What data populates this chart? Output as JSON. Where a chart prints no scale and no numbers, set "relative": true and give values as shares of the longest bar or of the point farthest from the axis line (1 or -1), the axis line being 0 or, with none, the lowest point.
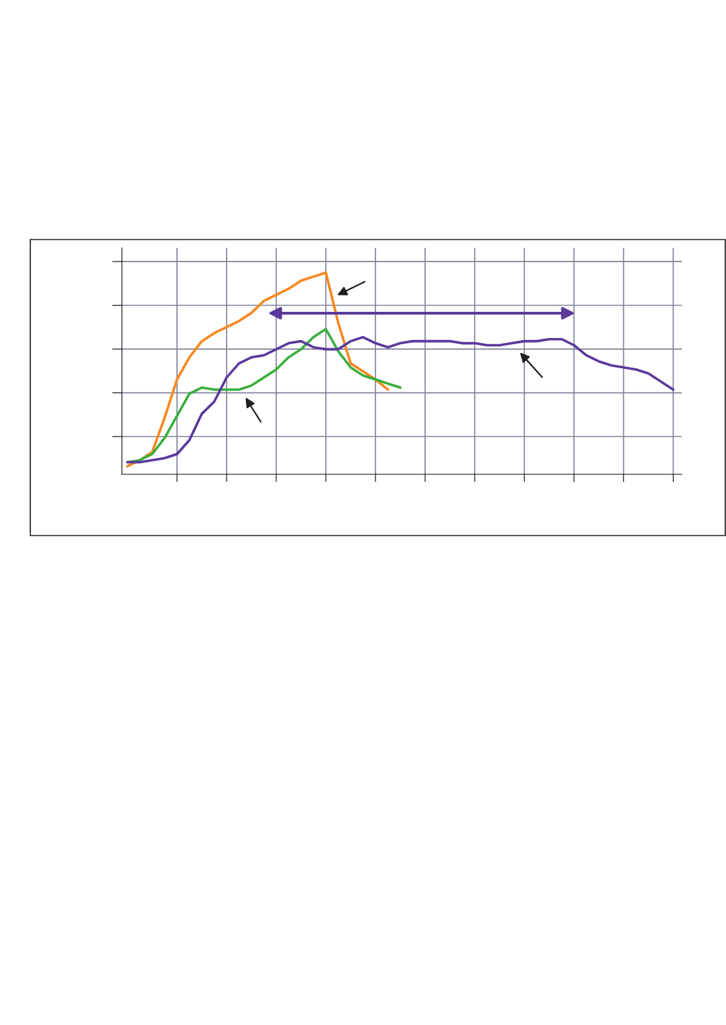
{
  "chart_data": {
    "type": "line",
    "relative": true,
    "grid": true,
    "tick_labels": false,
    "marker": "none",
    "line_style": "solid",
    "categories": [
      null,
      null,
      null,
      null,
      null,
      null,
      null,
      null,
      null,
      null,
      null,
      null,
      null,
      null,
      null,
      null,
      null,
      null,
      null,
      null,
      null,
      null,
      null,
      null,
      null,
      null,
      null,
      null,
      null,
      null,
      null,
      null,
      null,
      null,
      null,
      null,
      null,
      null,
      null,
      null,
      null,
      null,
      null,
      null,
      null
    ],
    "series": [
      {
        "color": "#f7871f",
        "values": [
          0.04,
          0.07,
          0.11,
          0.28,
          0.47,
          0.58,
          0.66,
          0.7,
          0.73,
          0.76,
          0.8,
          0.86,
          0.89,
          0.92,
          0.96,
          0.98,
          1.0,
          0.75,
          0.55,
          0.51,
          0.47,
          0.42,
          null,
          null,
          null,
          null,
          null,
          null,
          null,
          null,
          null,
          null,
          null,
          null,
          null,
          null,
          null,
          null,
          null,
          null,
          null,
          null,
          null,
          null,
          null
        ]
      },
      {
        "color": "#3aae3e",
        "values": [
          0.06,
          0.07,
          0.1,
          0.18,
          0.29,
          0.4,
          0.43,
          0.42,
          0.42,
          0.42,
          0.44,
          0.48,
          0.52,
          0.58,
          0.62,
          0.68,
          0.72,
          0.61,
          0.53,
          0.49,
          0.47,
          0.45,
          0.43,
          null,
          null,
          null,
          null,
          null,
          null,
          null,
          null,
          null,
          null,
          null,
          null,
          null,
          null,
          null,
          null,
          null,
          null,
          null,
          null,
          null,
          null
        ]
      },
      {
        "color": "#5b3a9c",
        "values": [
          0.06,
          0.06,
          0.07,
          0.08,
          0.1,
          0.17,
          0.3,
          0.36,
          0.48,
          0.55,
          0.58,
          0.59,
          0.62,
          0.65,
          0.66,
          0.63,
          0.62,
          0.62,
          0.66,
          0.68,
          0.65,
          0.63,
          0.65,
          0.66,
          0.66,
          0.66,
          0.66,
          0.65,
          0.65,
          0.64,
          0.64,
          0.65,
          0.66,
          0.66,
          0.67,
          0.67,
          0.64,
          0.59,
          0.56,
          0.54,
          0.53,
          0.52,
          0.5,
          0.46,
          0.42
        ]
      }
    ]
  }
}
